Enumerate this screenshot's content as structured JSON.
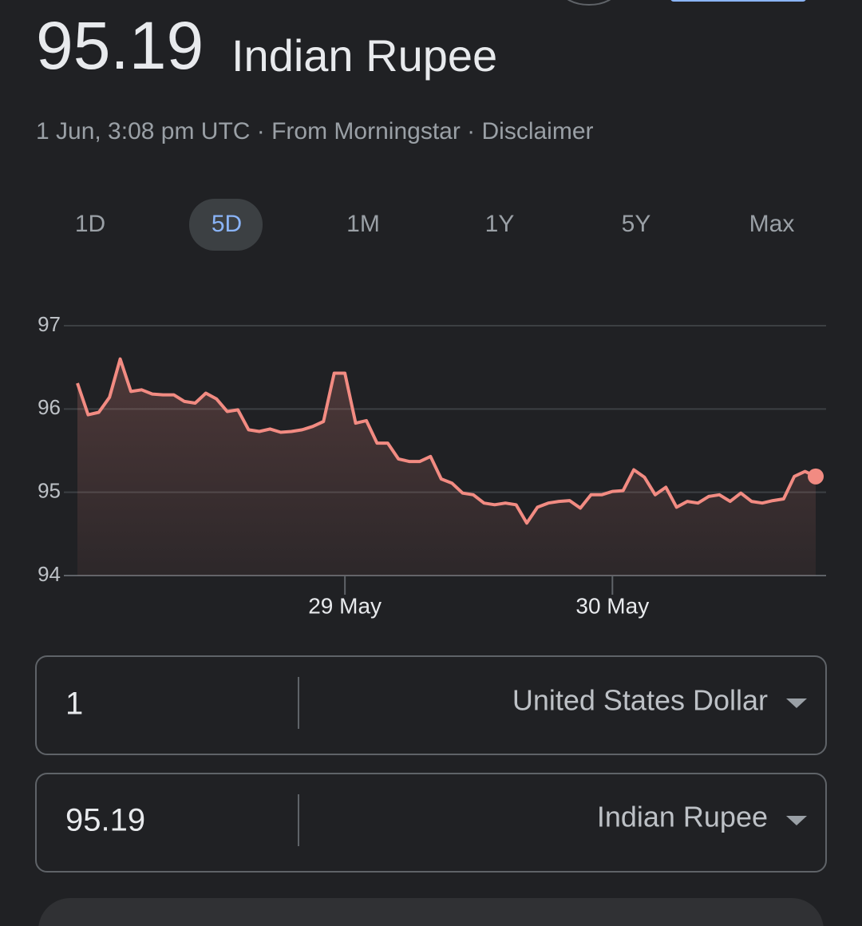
{
  "header": {
    "rate": "95.19",
    "currency": "Indian Rupee",
    "meta": "1 Jun, 3:08 pm UTC · From Morningstar · Disclaimer"
  },
  "tabs": [
    "1D",
    "5D",
    "1M",
    "1Y",
    "5Y",
    "Max"
  ],
  "chart_data": {
    "type": "line",
    "color": "#f28b82",
    "grid": true,
    "categories": [
      null,
      null,
      null,
      null,
      null,
      null,
      null,
      null,
      null,
      null,
      null,
      null,
      null,
      null,
      null,
      null,
      null,
      null,
      null,
      null,
      null,
      null,
      null,
      null,
      null,
      "29 May",
      null,
      null,
      null,
      null,
      null,
      null,
      null,
      null,
      null,
      null,
      null,
      null,
      null,
      null,
      null,
      null,
      null,
      null,
      null,
      null,
      null,
      null,
      null,
      null,
      "30 May",
      null,
      null,
      null,
      null,
      null,
      null,
      null,
      null,
      null,
      null,
      null,
      null,
      null,
      null,
      null,
      null,
      null,
      null,
      null
    ],
    "values": [
      96.31,
      95.93,
      95.96,
      96.14,
      96.6,
      96.21,
      96.23,
      96.18,
      96.17,
      96.17,
      96.09,
      96.07,
      96.19,
      96.12,
      95.97,
      95.99,
      95.75,
      95.73,
      95.76,
      95.72,
      95.73,
      95.75,
      95.79,
      95.85,
      96.43,
      96.43,
      95.83,
      95.86,
      95.59,
      95.59,
      95.4,
      95.37,
      95.37,
      95.43,
      95.16,
      95.11,
      94.99,
      94.97,
      94.87,
      94.85,
      94.87,
      94.85,
      94.63,
      94.82,
      94.87,
      94.89,
      94.9,
      94.81,
      94.97,
      94.97,
      95.01,
      95.02,
      95.27,
      95.18,
      94.97,
      95.06,
      94.82,
      94.89,
      94.87,
      94.95,
      94.97,
      94.89,
      94.99,
      94.89,
      94.87,
      94.9,
      94.92,
      95.19,
      95.25,
      95.19
    ],
    "ylim": [
      94,
      97
    ],
    "yticks": [
      94,
      95,
      96,
      97
    ]
  },
  "converter": {
    "from": {
      "amount": "1",
      "currency": "United States Dollar"
    },
    "to": {
      "amount": "95.19",
      "currency": "Indian Rupee"
    }
  }
}
